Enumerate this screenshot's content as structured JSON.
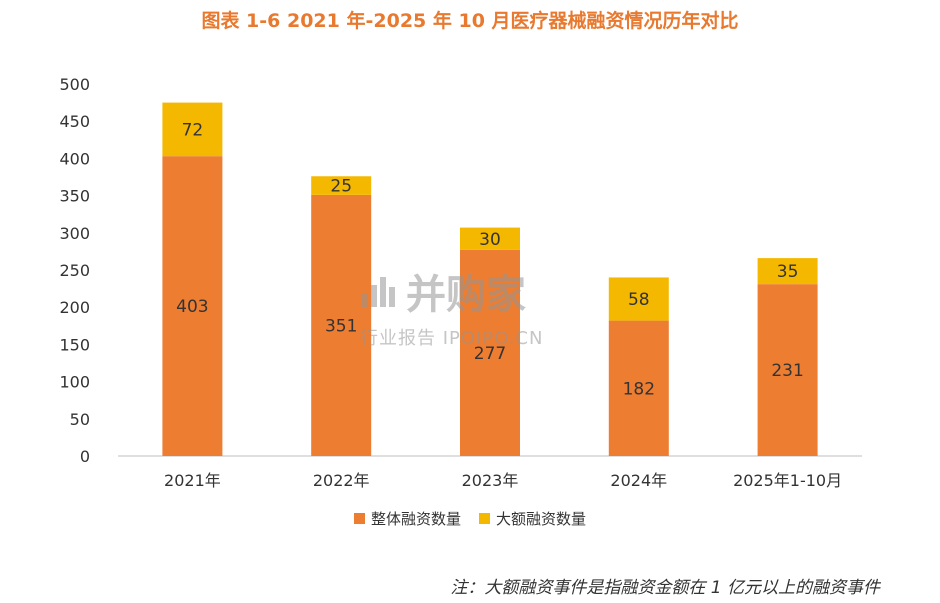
{
  "chart_data": {
    "type": "bar",
    "stacked": true,
    "title": "图表 1-6 2021 年-2025 年 10 月医疗器械融资情况历年对比",
    "categories": [
      "2021年",
      "2022年",
      "2023年",
      "2024年",
      "2025年1-10月"
    ],
    "series": [
      {
        "name": "整体融资数量",
        "values": [
          403,
          351,
          277,
          182,
          231
        ],
        "color": "#ed7d31"
      },
      {
        "name": "大额融资数量",
        "values": [
          72,
          25,
          30,
          58,
          35
        ],
        "color": "#f5b800"
      }
    ],
    "yticks": [
      0,
      50,
      100,
      150,
      200,
      250,
      300,
      350,
      400,
      450,
      500
    ],
    "ylim": [
      0,
      500
    ],
    "grid": false,
    "legend_position": "bottom-center"
  },
  "note": "注：大额融资事件是指融资金额在 1 亿元以上的融资事件",
  "watermark": {
    "main": "并购家",
    "sub": "行业报告 IPOIPO.CN"
  }
}
